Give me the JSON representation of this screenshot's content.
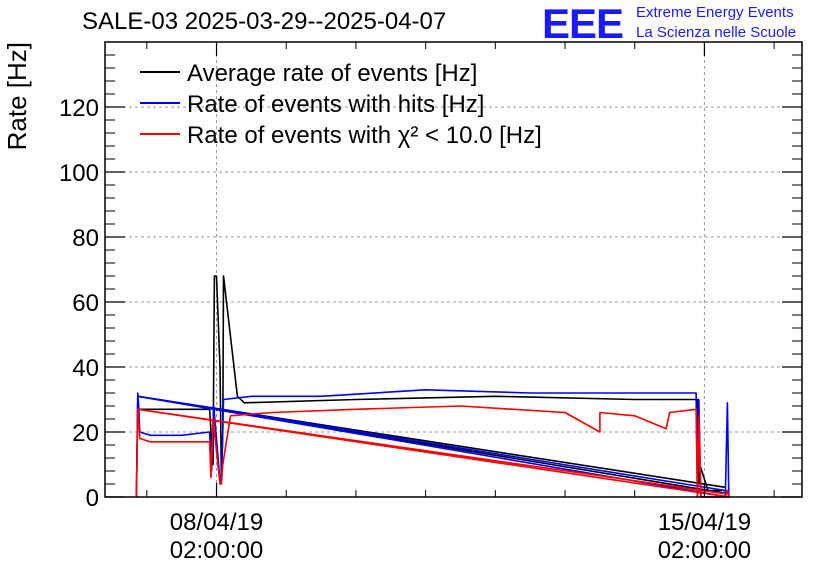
{
  "header": {
    "title": "SALE-03 2025-03-29--2025-04-07",
    "logo_letters": "EEE",
    "logo_line1": "Extreme Energy Events",
    "logo_line2": "La Scienza nelle Scuole",
    "brand_color": "#1a1aff"
  },
  "chart_data": {
    "type": "line",
    "title": "SALE-03 2025-03-29--2025-04-07",
    "xlabel": "",
    "ylabel": "Rate [Hz]",
    "ylim": [
      0,
      140
    ],
    "xlim": [
      -1.6,
      8.4
    ],
    "x_unit": "days from 08/04/19 02:00:00",
    "grid": true,
    "legend_position": "top-left",
    "yticks": [
      0,
      20,
      40,
      60,
      80,
      100,
      120
    ],
    "xticks": [
      {
        "x": 0,
        "line1": "08/04/19",
        "line2": "02:00:00"
      },
      {
        "x": 7,
        "line1": "15/04/19",
        "line2": "02:00:00"
      }
    ],
    "series": [
      {
        "name": "Average rate of events [Hz]",
        "color": "#000000",
        "points": [
          [
            -1.15,
            0
          ],
          [
            -1.13,
            31
          ],
          [
            -1.12,
            27
          ],
          [
            -0.95,
            27
          ],
          [
            -0.4,
            27
          ],
          [
            -0.1,
            27
          ],
          [
            -0.05,
            10
          ],
          [
            -0.03,
            68
          ],
          [
            0.0,
            68
          ],
          [
            0.05,
            40
          ],
          [
            0.07,
            6
          ],
          [
            0.09,
            20
          ],
          [
            0.1,
            68
          ],
          [
            0.3,
            31
          ],
          [
            0.4,
            29
          ],
          [
            2,
            30
          ],
          [
            4,
            31
          ],
          [
            6,
            30
          ],
          [
            6.9,
            30
          ],
          [
            6.92,
            4
          ],
          [
            6.95,
            9
          ],
          [
            7.05,
            2
          ],
          [
            7.3,
            2
          ],
          [
            7.35,
            1
          ],
          [
            -1.13,
            31
          ],
          [
            7.3,
            3
          ]
        ]
      },
      {
        "name": "Rate of events with hits [Hz]",
        "color": "#0000ff",
        "points": [
          [
            -1.15,
            0
          ],
          [
            -1.13,
            32
          ],
          [
            -1.12,
            29
          ],
          [
            -1.1,
            20
          ],
          [
            -0.95,
            19
          ],
          [
            -0.5,
            19
          ],
          [
            -0.1,
            20
          ],
          [
            -0.07,
            8
          ],
          [
            -0.04,
            28
          ],
          [
            0.05,
            5
          ],
          [
            0.07,
            5
          ],
          [
            0.08,
            12
          ],
          [
            0.1,
            30
          ],
          [
            0.5,
            31
          ],
          [
            1.5,
            31
          ],
          [
            3,
            33
          ],
          [
            4.5,
            32
          ],
          [
            6,
            32
          ],
          [
            6.88,
            32
          ],
          [
            6.9,
            0
          ],
          [
            6.92,
            30
          ],
          [
            6.95,
            0
          ],
          [
            7.3,
            0
          ],
          [
            7.33,
            29
          ],
          [
            7.35,
            0
          ],
          [
            -1.13,
            31
          ],
          [
            7.3,
            2
          ]
        ]
      },
      {
        "name": "Rate of events with χ² < 10.0 [Hz]",
        "color": "#ff0000",
        "points": [
          [
            -1.15,
            0
          ],
          [
            -1.13,
            27
          ],
          [
            -1.12,
            25
          ],
          [
            -1.1,
            18
          ],
          [
            -0.95,
            17
          ],
          [
            -0.5,
            17
          ],
          [
            -0.1,
            17
          ],
          [
            -0.08,
            6
          ],
          [
            -0.05,
            24
          ],
          [
            0.05,
            4
          ],
          [
            0.07,
            4
          ],
          [
            0.09,
            10
          ],
          [
            0.2,
            25
          ],
          [
            0.8,
            26
          ],
          [
            2,
            27
          ],
          [
            3.5,
            28
          ],
          [
            5,
            26
          ],
          [
            5.5,
            20
          ],
          [
            5.5,
            26
          ],
          [
            6,
            25
          ],
          [
            6.45,
            21
          ],
          [
            6.5,
            26
          ],
          [
            6.88,
            27
          ],
          [
            6.9,
            0
          ],
          [
            6.92,
            25
          ],
          [
            6.95,
            0
          ],
          [
            7.3,
            0
          ],
          [
            7.33,
            2
          ],
          [
            7.35,
            0
          ],
          [
            -1.13,
            27
          ],
          [
            7.3,
            1
          ]
        ]
      }
    ]
  }
}
